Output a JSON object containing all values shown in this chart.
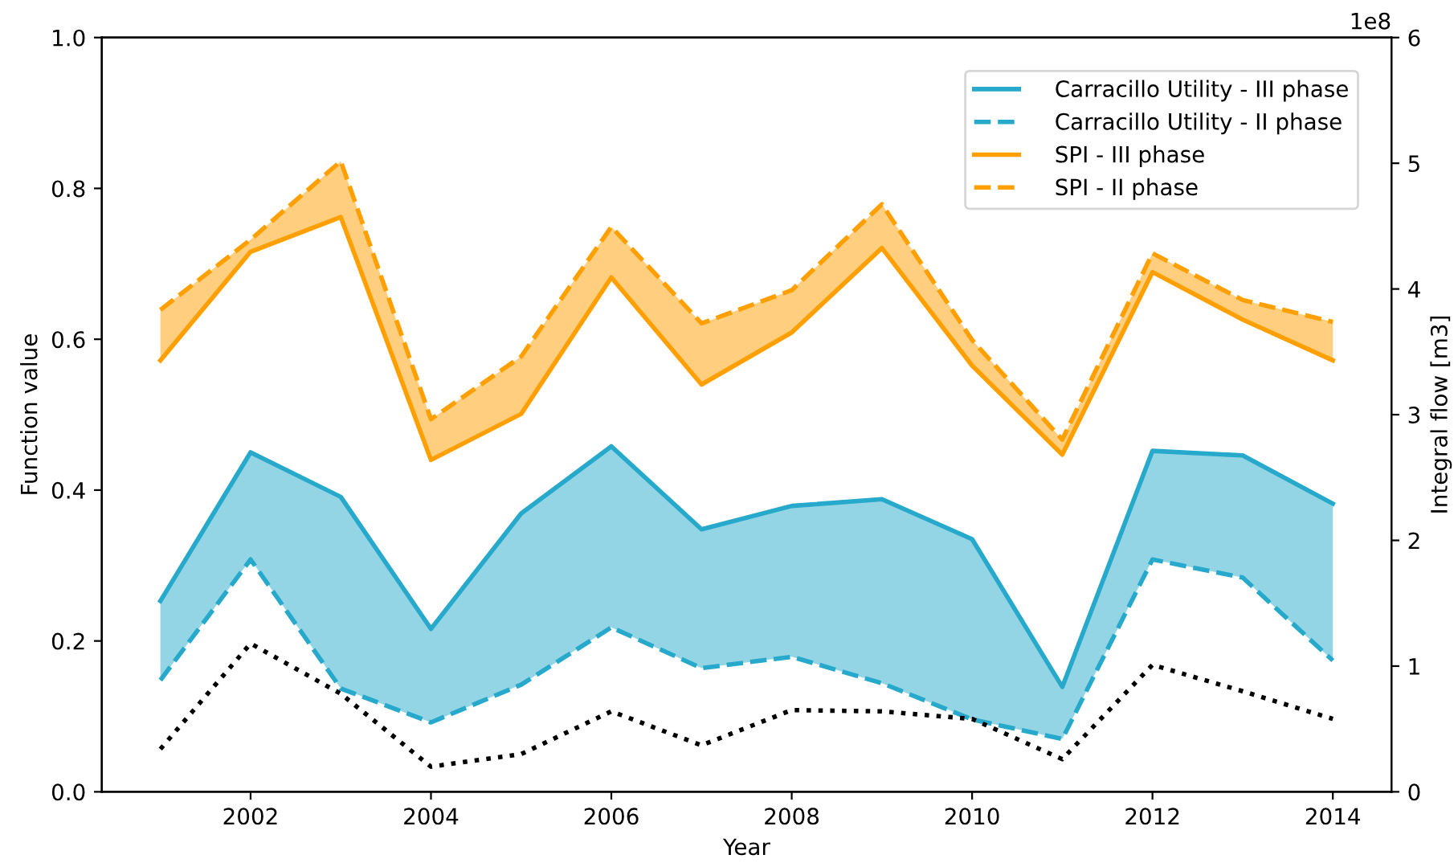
{
  "chart_data": {
    "type": "line",
    "xlabel": "Year",
    "ylabel": "Function value",
    "y2label": "Integral flow [m3]",
    "annotations": [
      "1e8"
    ],
    "x": [
      2001,
      2002,
      2003,
      2004,
      2005,
      2006,
      2007,
      2008,
      2009,
      2010,
      2011,
      2012,
      2013,
      2014
    ],
    "series": [
      {
        "name": "Carracillo Utility - III phase",
        "color": "#27a9cc",
        "line_style": "solid",
        "values": [
          0.253,
          0.45,
          0.391,
          0.216,
          0.369,
          0.458,
          0.348,
          0.379,
          0.388,
          0.335,
          0.139,
          0.452,
          0.446,
          0.382
        ],
        "lower": [
          0.148,
          0.308,
          0.137,
          0.092,
          0.142,
          0.218,
          0.164,
          0.179,
          0.144,
          0.096,
          0.07,
          0.308,
          0.284,
          0.174
        ],
        "upper": [
          0.253,
          0.45,
          0.391,
          0.216,
          0.369,
          0.458,
          0.348,
          0.379,
          0.388,
          0.335,
          0.139,
          0.452,
          0.446,
          0.382
        ]
      },
      {
        "name": "Carracillo Utility - II phase",
        "color": "#27a9cc",
        "line_style": "dashed",
        "values": [
          0.148,
          0.308,
          0.137,
          0.092,
          0.142,
          0.218,
          0.164,
          0.179,
          0.144,
          0.096,
          0.07,
          0.308,
          0.284,
          0.174
        ]
      },
      {
        "name": "SPI - III phase",
        "color": "#ff9f00",
        "line_style": "solid",
        "values": [
          0.572,
          0.716,
          0.762,
          0.44,
          0.501,
          0.682,
          0.54,
          0.609,
          0.721,
          0.565,
          0.447,
          0.689,
          0.626,
          0.572
        ],
        "lower": [
          0.572,
          0.716,
          0.762,
          0.44,
          0.501,
          0.682,
          0.54,
          0.609,
          0.721,
          0.565,
          0.447,
          0.689,
          0.626,
          0.572
        ],
        "upper": [
          0.639,
          0.732,
          0.836,
          0.494,
          0.577,
          0.749,
          0.621,
          0.665,
          0.779,
          0.599,
          0.467,
          0.714,
          0.652,
          0.623
        ]
      },
      {
        "name": "SPI - II phase",
        "color": "#ff9f00",
        "line_style": "dashed",
        "values": [
          0.639,
          0.732,
          0.836,
          0.494,
          0.577,
          0.749,
          0.621,
          0.665,
          0.779,
          0.599,
          0.467,
          0.714,
          0.652,
          0.623
        ]
      },
      {
        "color": "#000000",
        "line_style": "dotted",
        "axis": "y2",
        "values": [
          0.34,
          1.18,
          0.78,
          0.2,
          0.3,
          0.64,
          0.37,
          0.65,
          0.64,
          0.58,
          0.26,
          1.01,
          0.8,
          0.58
        ]
      }
    ],
    "xlim": [
      2000.35,
      2014.65
    ],
    "xticks": [
      2002,
      2004,
      2006,
      2008,
      2010,
      2012,
      2014
    ],
    "ylim": [
      0,
      1
    ],
    "yticks": [
      {
        "value": 0,
        "label": "0.0"
      },
      0.2,
      0.4,
      0.6,
      0.8,
      {
        "value": 1,
        "label": "1.0"
      }
    ],
    "y2lim": [
      0,
      6
    ],
    "y2ticks": [
      0,
      1,
      2,
      3,
      4,
      5,
      6
    ],
    "legend": "top right",
    "grid": false,
    "marker": "none"
  }
}
